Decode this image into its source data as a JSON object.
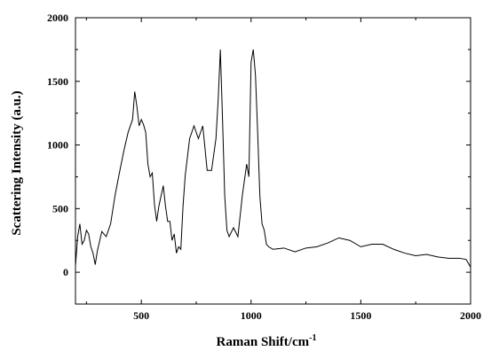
{
  "chart_data": {
    "type": "line",
    "title": "",
    "xlabel": "Raman Shift/cm",
    "xlabel_sup": "-1",
    "ylabel": "Scattering Intensity (a.u.)",
    "xlim": [
      200,
      2000
    ],
    "ylim": [
      -250,
      2000
    ],
    "xticks": [
      500,
      1000,
      1500,
      2000
    ],
    "xtick_labels": [
      "500",
      "1000",
      "1500",
      "2000"
    ],
    "yticks": [
      0,
      500,
      1000,
      1500,
      2000
    ],
    "ytick_labels": [
      "0",
      "500",
      "1000",
      "1500",
      "2000"
    ],
    "grid": false,
    "legend": "none",
    "line_color": "#000000",
    "series": [
      {
        "x": [
          200,
          210,
          220,
          230,
          240,
          250,
          260,
          270,
          280,
          290,
          300,
          320,
          340,
          360,
          380,
          400,
          420,
          440,
          460,
          470,
          480,
          490,
          500,
          510,
          520,
          530,
          540,
          550,
          560,
          570,
          580,
          590,
          600,
          610,
          620,
          630,
          640,
          650,
          660,
          670,
          680,
          690,
          700,
          720,
          740,
          760,
          780,
          800,
          820,
          840,
          850,
          860,
          870,
          880,
          890,
          900,
          920,
          940,
          960,
          980,
          990,
          1000,
          1010,
          1020,
          1030,
          1040,
          1050,
          1060,
          1070,
          1080,
          1100,
          1150,
          1200,
          1250,
          1300,
          1350,
          1400,
          1450,
          1500,
          1550,
          1600,
          1650,
          1700,
          1750,
          1800,
          1850,
          1900,
          1950,
          1980,
          2000
        ],
        "y": [
          50,
          280,
          380,
          220,
          250,
          330,
          300,
          200,
          150,
          60,
          170,
          320,
          280,
          380,
          600,
          780,
          950,
          1100,
          1200,
          1420,
          1300,
          1150,
          1200,
          1160,
          1100,
          850,
          750,
          780,
          530,
          400,
          520,
          600,
          680,
          520,
          400,
          400,
          250,
          300,
          150,
          200,
          180,
          520,
          760,
          1050,
          1150,
          1050,
          1150,
          800,
          800,
          1050,
          1350,
          1750,
          1200,
          600,
          330,
          280,
          350,
          280,
          600,
          850,
          750,
          1650,
          1750,
          1550,
          1100,
          600,
          380,
          330,
          220,
          200,
          180,
          190,
          160,
          190,
          200,
          230,
          270,
          250,
          200,
          220,
          220,
          180,
          150,
          130,
          140,
          120,
          110,
          110,
          100,
          40
        ]
      }
    ]
  }
}
